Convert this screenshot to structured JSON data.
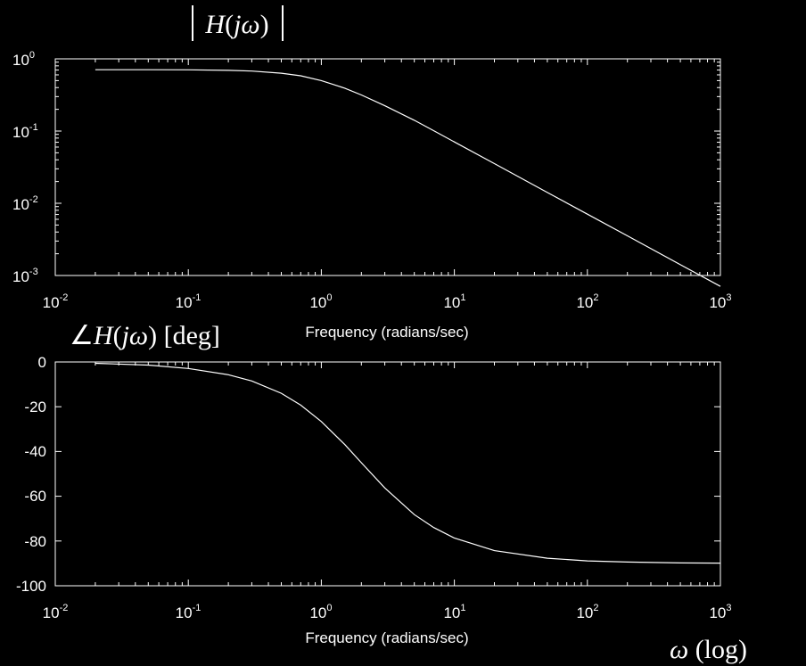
{
  "colors": {
    "background": "#000000",
    "foreground": "#ffffff"
  },
  "chart_data": [
    {
      "type": "line",
      "title": "|H(jω)|",
      "xlabel": "Frequency (radians/sec)",
      "ylabel": "",
      "xscale": "log",
      "yscale": "log",
      "xlim": [
        0.01,
        1000
      ],
      "ylim": [
        0.001,
        1
      ],
      "grid": false,
      "x_ticks": [
        {
          "base": "10",
          "exp": "-2"
        },
        {
          "base": "10",
          "exp": "-1"
        },
        {
          "base": "10",
          "exp": "0"
        },
        {
          "base": "10",
          "exp": "1"
        },
        {
          "base": "10",
          "exp": "2"
        },
        {
          "base": "10",
          "exp": "3"
        }
      ],
      "y_ticks": [
        {
          "base": "10",
          "exp": "0"
        },
        {
          "base": "10",
          "exp": "-1"
        },
        {
          "base": "10",
          "exp": "-2"
        },
        {
          "base": "10",
          "exp": "-3"
        }
      ],
      "series": [
        {
          "x": [
            0.02,
            0.05,
            0.1,
            0.2,
            0.3,
            0.5,
            0.7,
            1,
            1.5,
            2,
            3,
            5,
            7,
            10,
            20,
            50,
            100,
            200,
            500,
            1000
          ],
          "y": [
            0.707,
            0.706,
            0.704,
            0.693,
            0.678,
            0.632,
            0.582,
            0.5,
            0.392,
            0.316,
            0.224,
            0.141,
            0.101,
            0.0707,
            0.0354,
            0.0141,
            0.00707,
            0.00354,
            0.00141,
            0.000707
          ]
        }
      ]
    },
    {
      "type": "line",
      "title": "∠H(jω) [deg]",
      "xlabel": "Frequency (radians/sec)",
      "ylabel": "",
      "xscale": "log",
      "xlim": [
        0.01,
        1000
      ],
      "ylim": [
        -100,
        0
      ],
      "grid": false,
      "x_ticks": [
        {
          "base": "10",
          "exp": "-2"
        },
        {
          "base": "10",
          "exp": "-1"
        },
        {
          "base": "10",
          "exp": "0"
        },
        {
          "base": "10",
          "exp": "1"
        },
        {
          "base": "10",
          "exp": "2"
        },
        {
          "base": "10",
          "exp": "3"
        }
      ],
      "y_ticks": [
        "0",
        "-20",
        "-40",
        "-60",
        "-80",
        "-100"
      ],
      "series": [
        {
          "x": [
            0.02,
            0.05,
            0.1,
            0.2,
            0.3,
            0.5,
            0.7,
            1,
            1.5,
            2,
            3,
            5,
            7,
            10,
            20,
            50,
            100,
            200,
            500,
            1000
          ],
          "y": [
            -0.6,
            -1.4,
            -2.9,
            -5.7,
            -8.5,
            -14,
            -19.3,
            -26.6,
            -36.9,
            -45,
            -56.3,
            -68.2,
            -74,
            -78.7,
            -84.3,
            -87.7,
            -88.9,
            -89.4,
            -89.8,
            -89.9
          ]
        }
      ]
    }
  ],
  "annotations": {
    "x_axis_note": "ω (log)"
  }
}
